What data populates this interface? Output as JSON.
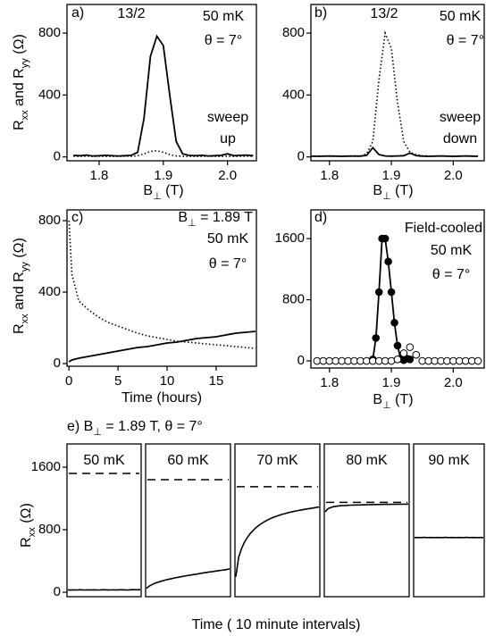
{
  "chart_data": [
    {
      "type": "line",
      "label": "a)",
      "annotations": [
        "13/2",
        "50 mK",
        "θ = 7°",
        "sweep",
        "up"
      ],
      "xlabel": [
        "B",
        "⊥",
        "  (T)"
      ],
      "ylabel": [
        "R",
        "xx",
        " and R",
        "yy",
        "  (Ω)"
      ],
      "xlim": [
        1.75,
        2.045
      ],
      "ylim": [
        -25,
        985
      ],
      "xticks": [
        1.8,
        1.9,
        {
          "value": 2,
          "label": "2.0"
        }
      ],
      "yticks": [
        0,
        400,
        800
      ],
      "x": [
        1.76,
        1.77,
        1.78,
        1.79,
        1.8,
        1.81,
        1.82,
        1.83,
        1.84,
        1.85,
        1.86,
        1.87,
        1.88,
        1.89,
        1.9,
        1.91,
        1.92,
        1.93,
        1.94,
        1.95,
        1.96,
        1.97,
        1.98,
        1.99,
        2,
        2.01,
        2.02,
        2.03,
        2.04
      ],
      "series": [
        {
          "color": "#000000",
          "dash": "solid",
          "values": [
            10,
            8,
            12,
            6,
            8,
            10,
            8,
            6,
            8,
            10,
            30,
            250,
            650,
            780,
            720,
            400,
            100,
            20,
            10,
            8,
            10,
            6,
            8,
            10,
            20,
            8,
            10,
            12,
            8
          ]
        },
        {
          "color": "#000000",
          "dash": "dotted",
          "values": [
            4,
            3,
            5,
            3,
            4,
            3,
            4,
            3,
            5,
            4,
            8,
            20,
            35,
            40,
            30,
            15,
            6,
            4,
            3,
            4,
            3,
            5,
            4,
            3,
            4,
            3,
            4,
            5,
            3
          ]
        }
      ]
    },
    {
      "type": "line",
      "label": "b)",
      "annotations": [
        "13/2",
        "50 mK",
        "θ = 7°",
        "sweep",
        "down"
      ],
      "xlabel": [
        "B",
        "⊥",
        "  (T)"
      ],
      "xlim": [
        1.77,
        2.05
      ],
      "ylim": [
        -25,
        985
      ],
      "xticks": [
        1.8,
        1.9,
        {
          "value": 2,
          "label": "2.0"
        }
      ],
      "yticks": [
        0,
        400,
        800
      ],
      "x": [
        1.77,
        1.78,
        1.79,
        1.8,
        1.81,
        1.82,
        1.83,
        1.84,
        1.85,
        1.86,
        1.87,
        1.88,
        1.89,
        1.9,
        1.91,
        1.92,
        1.93,
        1.94,
        1.95,
        1.96,
        1.97,
        1.98,
        1.99,
        2,
        2.01,
        2.02,
        2.03,
        2.04
      ],
      "series": [
        {
          "color": "#000000",
          "dash": "solid",
          "values": [
            5,
            4,
            5,
            6,
            5,
            4,
            5,
            6,
            5,
            10,
            60,
            15,
            6,
            5,
            6,
            8,
            25,
            8,
            5,
            4,
            5,
            6,
            5,
            4,
            5,
            6,
            5,
            4
          ]
        },
        {
          "color": "#000000",
          "dash": "dotted",
          "values": [
            5,
            6,
            5,
            4,
            5,
            6,
            5,
            4,
            5,
            20,
            100,
            500,
            800,
            700,
            350,
            100,
            30,
            15,
            8,
            6,
            5,
            6,
            5,
            4,
            5,
            6,
            5,
            4
          ]
        }
      ]
    },
    {
      "type": "line",
      "label": "c)",
      "annotations": [
        [
          "B",
          "⊥",
          " = 1.89 T"
        ],
        "50 mK",
        "θ = 7°"
      ],
      "xlabel": "Time (hours)",
      "ylabel": [
        "R",
        "xx",
        " and R",
        "yy",
        "  (Ω)"
      ],
      "xlim": [
        -0.2,
        19.1
      ],
      "ylim": [
        -15,
        860
      ],
      "xticks": [
        0,
        5,
        10,
        15
      ],
      "yticks": [
        0,
        400,
        800
      ],
      "x": [
        0,
        0.3,
        1,
        2,
        3,
        4,
        5,
        6,
        7,
        8,
        9,
        10,
        11,
        12,
        13,
        14,
        15,
        16,
        17,
        18,
        19
      ],
      "series": [
        {
          "color": "#000000",
          "dash": "solid",
          "values": [
            10,
            20,
            30,
            40,
            50,
            60,
            70,
            80,
            90,
            95,
            105,
            115,
            120,
            130,
            140,
            145,
            150,
            160,
            170,
            175,
            180
          ]
        },
        {
          "color": "#000000",
          "dash": "dotted",
          "values": [
            800,
            500,
            350,
            300,
            260,
            230,
            210,
            190,
            170,
            155,
            145,
            135,
            125,
            120,
            115,
            110,
            105,
            100,
            95,
            90,
            85
          ]
        }
      ]
    },
    {
      "type": "scatter",
      "label": "d)",
      "annotations": [
        "Field-cooled",
        "50 mK",
        "θ = 7°"
      ],
      "xlabel": [
        "B",
        "⊥",
        "  (T)"
      ],
      "xlim": [
        1.77,
        2.05
      ],
      "ylim": [
        -93,
        1975
      ],
      "xticks": [
        1.8,
        1.9,
        {
          "value": 2,
          "label": "2.0"
        }
      ],
      "yticks": [
        0,
        800,
        1600
      ],
      "series": [
        {
          "color": "#000000",
          "marker": "filled",
          "line": true,
          "x": [
            1.87,
            1.875,
            1.88,
            1.885,
            1.89,
            1.895,
            1.9,
            1.905,
            1.91,
            1.915,
            1.92,
            1.925,
            1.93
          ],
          "values": [
            20,
            300,
            900,
            1600,
            1600,
            1300,
            900,
            500,
            200,
            30,
            10,
            30,
            20
          ]
        },
        {
          "color": "#000000",
          "marker": "open",
          "line": false,
          "x": [
            1.78,
            1.79,
            1.8,
            1.81,
            1.82,
            1.83,
            1.84,
            1.85,
            1.86,
            1.87,
            1.88,
            1.89,
            1.9,
            1.91,
            1.92,
            1.93,
            1.94,
            1.95,
            1.96,
            1.97,
            1.98,
            1.99,
            2,
            2.01,
            2.02,
            2.03,
            2.04
          ],
          "values": [
            0,
            0,
            0,
            0,
            0,
            0,
            0,
            0,
            0,
            0,
            0,
            0,
            0,
            20,
            100,
            180,
            80,
            0,
            0,
            0,
            0,
            0,
            0,
            0,
            0,
            0,
            0
          ]
        }
      ]
    },
    {
      "type": "panels",
      "title": [
        "e)  B",
        "⊥",
        " = 1.89 T,  θ = 7°"
      ],
      "xlabel": "Time  ( 10 minute intervals)",
      "ylabel": [
        "R",
        "xx",
        "  (Ω)"
      ],
      "ylim": [
        -57,
        1897
      ],
      "yticks": [
        0,
        800,
        1600
      ],
      "color": "#000000",
      "panels": [
        {
          "label": "50 mK",
          "reference": 1520,
          "values": [
            30,
            28,
            31,
            29,
            30,
            32,
            30,
            29,
            31,
            30,
            30,
            31,
            29,
            30,
            32,
            31,
            30,
            29,
            31,
            30,
            30,
            32,
            31,
            30,
            29,
            31,
            33,
            32,
            31,
            33
          ]
        },
        {
          "label": "60 mK",
          "reference": 1440,
          "values": [
            50,
            80,
            100,
            115,
            128,
            140,
            150,
            160,
            168,
            176,
            184,
            191,
            198,
            205,
            212,
            218,
            224,
            230,
            236,
            242,
            248,
            254,
            259,
            264,
            270,
            275,
            280,
            285,
            290,
            300
          ]
        },
        {
          "label": "70 mK",
          "reference": 1350,
          "values": [
            200,
            450,
            560,
            640,
            700,
            750,
            790,
            825,
            855,
            880,
            903,
            923,
            940,
            956,
            970,
            983,
            995,
            1005,
            1015,
            1024,
            1032,
            1040,
            1047,
            1054,
            1060,
            1066,
            1072,
            1078,
            1084,
            1090
          ]
        },
        {
          "label": "80 mK",
          "reference": 1150,
          "values": [
            1030,
            1070,
            1085,
            1095,
            1100,
            1105,
            1108,
            1110,
            1112,
            1114,
            1115,
            1116,
            1117,
            1118,
            1119,
            1120,
            1121,
            1122,
            1122,
            1123,
            1123,
            1124,
            1124,
            1125,
            1125,
            1126,
            1126,
            1127,
            1127,
            1128
          ]
        },
        {
          "label": "90 mK",
          "values": [
            700,
            701,
            699,
            700,
            702,
            700,
            699,
            701,
            700,
            700,
            701,
            699,
            700,
            702,
            700,
            699,
            701,
            700,
            700,
            701,
            699,
            700,
            702,
            700,
            699,
            701,
            700,
            700,
            701,
            700
          ]
        }
      ]
    }
  ]
}
